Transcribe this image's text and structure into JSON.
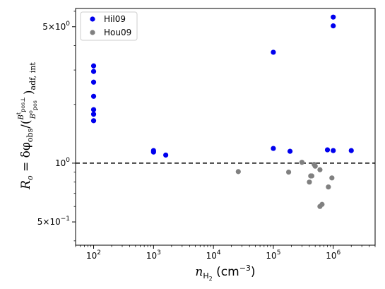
{
  "chart_data": {
    "type": "scatter",
    "x_scale": "log",
    "y_scale": "log",
    "xlim": [
      50,
      5000000
    ],
    "ylim": [
      0.38,
      6.2
    ],
    "x_ticks": [
      {
        "value": 100,
        "base": "10",
        "exp": "2"
      },
      {
        "value": 1000,
        "base": "10",
        "exp": "3"
      },
      {
        "value": 10000,
        "base": "10",
        "exp": "4"
      },
      {
        "value": 100000,
        "base": "10",
        "exp": "5"
      },
      {
        "value": 1000000,
        "base": "10",
        "exp": "6"
      }
    ],
    "y_ticks": [
      {
        "value": 0.5,
        "mant": "5×10",
        "exp": "−1"
      },
      {
        "value": 1,
        "mant": "10",
        "exp": "0"
      },
      {
        "value": 5,
        "mant": "5×10",
        "exp": "0"
      }
    ],
    "reference_line": {
      "y": 1,
      "style": "dashed",
      "color": "#000000"
    },
    "legend": {
      "position": "top-left"
    },
    "xlabel": {
      "main": "n",
      "sub": "H",
      "subsub": "2",
      "unit": " (cm",
      "unit_exp": "−3",
      "unit_close": ")"
    },
    "ylabel": {
      "lhs": "R",
      "lhs_sub": "o",
      "eq": " = δφ",
      "phi_sub": "obs",
      "slash": "/(",
      "num_base": "B",
      "num_sup": "t",
      "num_sub": "pos⊥",
      "den_base": "B",
      "den_sup": "o",
      "den_sub": "pos",
      "close": ")",
      "close_sub": "adf, int"
    },
    "series": [
      {
        "name": "Hil09",
        "color": "#0000ee",
        "points": [
          [
            100,
            3.15
          ],
          [
            100,
            2.95
          ],
          [
            100,
            2.6
          ],
          [
            100,
            2.2
          ],
          [
            100,
            1.88
          ],
          [
            100,
            1.78
          ],
          [
            100,
            1.65
          ],
          [
            1000,
            1.16
          ],
          [
            1000,
            1.14
          ],
          [
            1600,
            1.1
          ],
          [
            100000,
            3.7
          ],
          [
            100000,
            1.19
          ],
          [
            190000,
            1.15
          ],
          [
            800000,
            1.17
          ],
          [
            1000000,
            5.6
          ],
          [
            1000000,
            5.05
          ],
          [
            1000000,
            1.16
          ],
          [
            2000000,
            1.16
          ]
        ]
      },
      {
        "name": "Hou09",
        "color": "#808080",
        "points": [
          [
            26000,
            0.905
          ],
          [
            180000,
            0.9
          ],
          [
            300000,
            1.01
          ],
          [
            400000,
            0.8
          ],
          [
            420000,
            0.86
          ],
          [
            440000,
            0.86
          ],
          [
            480000,
            0.985
          ],
          [
            500000,
            0.965
          ],
          [
            600000,
            0.925
          ],
          [
            600000,
            0.6
          ],
          [
            650000,
            0.615
          ],
          [
            830000,
            0.755
          ],
          [
            950000,
            0.84
          ]
        ]
      }
    ]
  }
}
